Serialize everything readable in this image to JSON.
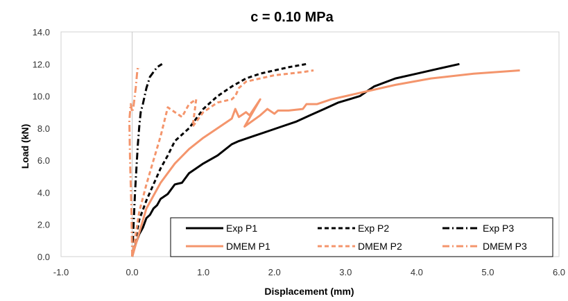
{
  "chart_data": {
    "type": "line",
    "title": "c = 0.10 MPa",
    "xlabel": "Displacement (mm)",
    "ylabel": "Load (kN)",
    "xlim": [
      -1.0,
      6.0
    ],
    "ylim": [
      0.0,
      14.0
    ],
    "xticks": [
      "-1.0",
      "0.0",
      "1.0",
      "2.0",
      "3.0",
      "4.0",
      "5.0",
      "6.0"
    ],
    "yticks": [
      "0.0",
      "2.0",
      "4.0",
      "6.0",
      "8.0",
      "10.0",
      "12.0",
      "14.0"
    ],
    "grid": false,
    "legend_position": "bottom-right",
    "series": [
      {
        "name": "Exp P1",
        "color": "#000000",
        "dash": "solid",
        "x": [
          0.0,
          0.05,
          0.1,
          0.15,
          0.2,
          0.25,
          0.3,
          0.35,
          0.4,
          0.5,
          0.6,
          0.7,
          0.8,
          0.9,
          1.0,
          1.2,
          1.4,
          1.5,
          1.7,
          1.9,
          2.1,
          2.3,
          2.5,
          2.7,
          2.9,
          3.2,
          3.4,
          3.7,
          4.0,
          4.3,
          4.6
        ],
        "y": [
          0.0,
          0.8,
          1.4,
          1.8,
          2.4,
          2.6,
          3.0,
          3.2,
          3.6,
          3.9,
          4.5,
          4.6,
          5.2,
          5.5,
          5.8,
          6.3,
          7.0,
          7.2,
          7.5,
          7.8,
          8.1,
          8.4,
          8.8,
          9.2,
          9.6,
          10.0,
          10.6,
          11.1,
          11.4,
          11.7,
          12.0
        ]
      },
      {
        "name": "Exp P2",
        "color": "#000000",
        "dash": "dashed",
        "x": [
          0.0,
          0.1,
          0.2,
          0.3,
          0.4,
          0.5,
          0.6,
          0.7,
          0.8,
          0.9,
          1.0,
          1.2,
          1.4,
          1.6,
          1.8,
          2.0,
          2.2,
          2.45
        ],
        "y": [
          0.0,
          2.3,
          3.5,
          4.5,
          5.5,
          6.3,
          7.2,
          7.6,
          8.0,
          8.6,
          9.2,
          10.0,
          10.6,
          11.1,
          11.4,
          11.6,
          11.8,
          12.0
        ]
      },
      {
        "name": "Exp P3",
        "color": "#000000",
        "dash": "dashdot",
        "x": [
          0.0,
          0.02,
          0.04,
          0.06,
          0.08,
          0.1,
          0.12,
          0.15,
          0.2,
          0.25,
          0.3,
          0.35,
          0.42
        ],
        "y": [
          0.0,
          2.0,
          4.0,
          5.5,
          7.0,
          8.1,
          9.0,
          9.5,
          10.5,
          11.2,
          11.5,
          11.8,
          12.0
        ]
      },
      {
        "name": "DMEM P1",
        "color": "#F4956C",
        "dash": "solid",
        "x": [
          0.0,
          0.2,
          0.4,
          0.6,
          0.8,
          1.0,
          1.2,
          1.4,
          1.45,
          1.5,
          1.6,
          1.65,
          1.8,
          1.58,
          1.8,
          1.9,
          2.0,
          2.05,
          2.2,
          2.4,
          2.45,
          2.6,
          2.8,
          3.0,
          3.3,
          3.7,
          4.2,
          4.8,
          5.45
        ],
        "y": [
          0.0,
          3.0,
          4.6,
          5.8,
          6.7,
          7.4,
          8.0,
          8.6,
          9.2,
          8.7,
          9.0,
          8.8,
          9.8,
          8.1,
          8.8,
          9.2,
          8.9,
          9.1,
          9.1,
          9.2,
          9.5,
          9.5,
          9.8,
          10.0,
          10.3,
          10.7,
          11.1,
          11.4,
          11.6
        ]
      },
      {
        "name": "DMEM P2",
        "color": "#F4956C",
        "dash": "dashed",
        "x": [
          0.0,
          0.1,
          0.2,
          0.3,
          0.4,
          0.5,
          0.6,
          0.7,
          0.8,
          0.9,
          0.85,
          1.0,
          1.2,
          1.4,
          1.45,
          1.5,
          1.6,
          1.8,
          2.0,
          2.2,
          2.4,
          2.55
        ],
        "y": [
          0.0,
          2.8,
          4.5,
          6.0,
          7.5,
          9.3,
          9.0,
          8.7,
          9.5,
          9.8,
          8.1,
          9.0,
          9.6,
          9.8,
          10.0,
          10.5,
          10.9,
          11.1,
          11.3,
          11.4,
          11.5,
          11.6
        ]
      },
      {
        "name": "DMEM P3",
        "color": "#F4956C",
        "dash": "dashdot",
        "x": [
          0.0,
          -0.01,
          -0.03,
          -0.04,
          -0.02,
          0.0,
          0.02,
          0.05,
          0.07,
          0.08,
          0.1
        ],
        "y": [
          0.0,
          3.0,
          6.0,
          8.5,
          9.5,
          9.0,
          9.4,
          10.5,
          11.5,
          11.8,
          11.7
        ]
      }
    ]
  }
}
